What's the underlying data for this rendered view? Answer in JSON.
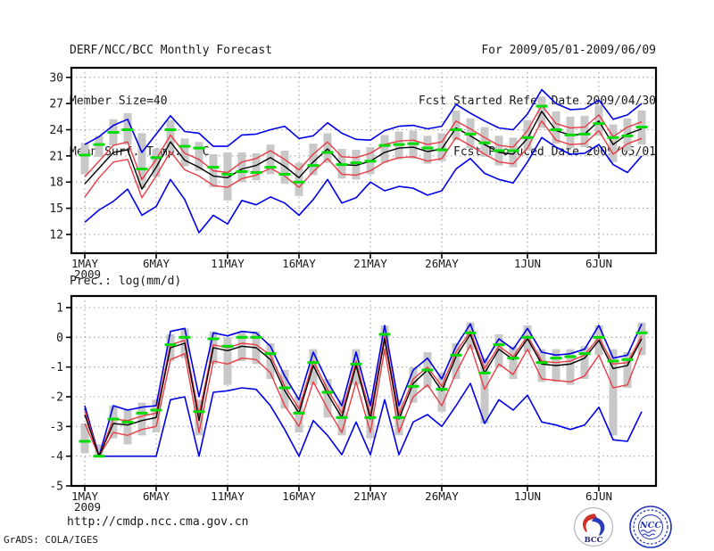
{
  "header": {
    "left": [
      "DERF/NCC/BCC Monthly Forecast",
      "Member Size=40",
      "Mean Surf. Temp.: °C"
    ],
    "right": [
      "For 2009/05/01-2009/06/09",
      "Fcst Started Refer Date 2009/04/30",
      "Fcst Produced Date 2009/05/01"
    ]
  },
  "prec_label": "Prec.: log(mm/d)",
  "footer": {
    "url": "http://cmdp.ncc.cma.gov.cn",
    "grads_credit": "GrADS: COLA/IGES",
    "logos": [
      {
        "label": "BCC"
      },
      {
        "label": "NCC"
      }
    ]
  },
  "colors": {
    "blue": "#0000e8",
    "red": "#e83c46",
    "black": "#000000",
    "green": "#00dc00",
    "gray": "#c8c8c8",
    "grid": "#9c9c9c",
    "frame": "#000000"
  },
  "chart_data": [
    {
      "name": "surface-temperature",
      "type": "line",
      "title": "Mean Surf. Temp.: °C",
      "start_date_label": "1MAY 2009",
      "x_days": 40,
      "ylim": [
        9.85,
        31.1
      ],
      "yticks": [
        30,
        27,
        24,
        21,
        18,
        15,
        12
      ],
      "grid": true,
      "xticks": [
        {
          "i": 0,
          "label": "1MAY",
          "sub": "2009"
        },
        {
          "i": 5,
          "label": "6MAY"
        },
        {
          "i": 10,
          "label": "11MAY"
        },
        {
          "i": 15,
          "label": "16MAY"
        },
        {
          "i": 20,
          "label": "21MAY"
        },
        {
          "i": 25,
          "label": "26MAY"
        },
        {
          "i": 31,
          "label": "1JUN"
        },
        {
          "i": 36,
          "label": "6JUN"
        }
      ],
      "series": [
        {
          "name": "ensemble-spread-bar",
          "style": "bar",
          "color": "gray",
          "lo": [
            18.9,
            20.9,
            22.2,
            22.3,
            17.3,
            18.6,
            21.6,
            19.8,
            19.3,
            17.4,
            15.9,
            18.0,
            18.2,
            18.9,
            17.8,
            16.4,
            18.8,
            20.2,
            18.4,
            18.3,
            18.9,
            20.2,
            20.6,
            20.7,
            20.1,
            20.4,
            22.8,
            21.9,
            20.9,
            19.9,
            19.7,
            21.6,
            24.2,
            22.4,
            21.9,
            22.0,
            23.3,
            20.3,
            21.6,
            22.3
          ],
          "hi": [
            22.5,
            23.3,
            25.2,
            25.9,
            23.6,
            21.8,
            25.1,
            23.0,
            22.6,
            21.2,
            21.4,
            21.4,
            21.3,
            22.3,
            21.6,
            20.2,
            22.4,
            23.6,
            21.8,
            21.7,
            22.0,
            23.4,
            23.8,
            23.9,
            23.3,
            23.6,
            26.2,
            25.3,
            24.3,
            23.3,
            23.1,
            25.1,
            27.8,
            26.1,
            25.5,
            25.6,
            26.8,
            24.6,
            25.3,
            26.2
          ]
        },
        {
          "name": "ensemble-max",
          "style": "line",
          "color": "blue",
          "width": 1.6,
          "values": [
            22.3,
            23.2,
            24.5,
            25.2,
            21.4,
            23.5,
            25.6,
            23.8,
            23.6,
            22.1,
            22.1,
            23.4,
            23.5,
            24.0,
            24.4,
            23.0,
            23.3,
            24.8,
            23.6,
            22.9,
            22.8,
            23.9,
            24.4,
            24.5,
            24.1,
            24.4,
            26.9,
            25.9,
            25.0,
            24.2,
            24.0,
            25.8,
            28.6,
            27.0,
            26.3,
            26.4,
            27.4,
            25.2,
            25.7,
            27.0
          ]
        },
        {
          "name": "ensemble-min",
          "style": "line",
          "color": "blue",
          "width": 1.6,
          "values": [
            13.4,
            14.8,
            15.8,
            17.2,
            14.2,
            15.2,
            18.3,
            16.0,
            12.2,
            14.2,
            13.2,
            15.9,
            15.4,
            16.3,
            15.6,
            14.2,
            16.0,
            18.3,
            15.6,
            16.2,
            18.0,
            17.0,
            17.5,
            17.3,
            16.5,
            17.0,
            19.5,
            20.7,
            19.0,
            18.3,
            17.9,
            20.3,
            23.1,
            22.0,
            21.2,
            21.3,
            22.3,
            20.0,
            19.1,
            21.0
          ]
        },
        {
          "name": "upper-envelope",
          "style": "line",
          "color": "red",
          "width": 1.4,
          "values": [
            18.6,
            20.4,
            22.2,
            22.6,
            18.3,
            20.6,
            23.4,
            21.3,
            20.6,
            19.3,
            19.1,
            20.3,
            20.7,
            21.6,
            20.6,
            19.4,
            21.2,
            22.6,
            20.9,
            20.8,
            21.3,
            22.3,
            22.7,
            22.8,
            22.3,
            22.6,
            25.0,
            24.1,
            23.1,
            22.2,
            22.0,
            23.9,
            26.8,
            24.7,
            24.2,
            24.3,
            25.7,
            23.2,
            24.3,
            24.9
          ]
        },
        {
          "name": "lower-envelope",
          "style": "line",
          "color": "red",
          "width": 1.4,
          "values": [
            16.3,
            18.5,
            20.3,
            20.6,
            16.2,
            18.7,
            21.5,
            19.4,
            18.7,
            17.6,
            17.4,
            18.4,
            18.8,
            19.6,
            18.7,
            17.4,
            19.2,
            20.7,
            18.9,
            18.8,
            19.3,
            20.3,
            20.8,
            20.9,
            20.4,
            20.7,
            23.1,
            22.2,
            21.2,
            20.3,
            20.1,
            21.9,
            25.0,
            22.8,
            22.3,
            22.4,
            23.9,
            21.2,
            22.4,
            23.0
          ]
        },
        {
          "name": "ensemble-mean",
          "style": "line",
          "color": "black",
          "width": 1.4,
          "values": [
            17.8,
            19.6,
            21.4,
            21.7,
            17.2,
            19.7,
            22.6,
            20.5,
            19.7,
            18.7,
            18.5,
            19.5,
            19.9,
            20.8,
            19.8,
            18.5,
            20.3,
            21.8,
            20.0,
            19.9,
            20.4,
            21.4,
            21.9,
            22.0,
            21.5,
            21.8,
            24.2,
            23.3,
            22.3,
            21.4,
            21.2,
            23.0,
            26.1,
            23.9,
            23.4,
            23.5,
            25.0,
            22.3,
            23.5,
            24.1
          ]
        },
        {
          "name": "reference-dashes",
          "style": "dash",
          "color": "green",
          "values": [
            21.1,
            22.3,
            23.7,
            24.0,
            19.5,
            20.8,
            24.0,
            22.1,
            21.9,
            19.7,
            18.9,
            19.2,
            19.1,
            19.7,
            18.9,
            18.0,
            19.9,
            21.4,
            20.0,
            20.2,
            20.4,
            22.2,
            22.3,
            22.4,
            21.9,
            21.7,
            24.0,
            23.5,
            22.5,
            21.6,
            21.6,
            23.1,
            26.7,
            24.0,
            23.4,
            23.5,
            24.7,
            23.1,
            23.3,
            24.3
          ]
        }
      ]
    },
    {
      "name": "precipitation",
      "type": "line",
      "title": "Prec.: log(mm/d)",
      "start_date_label": "1MAY 2009",
      "x_days": 40,
      "ylim": [
        -5.0,
        1.39
      ],
      "yticks": [
        1,
        0,
        -1,
        -2,
        -3,
        -4,
        -5
      ],
      "grid": true,
      "xticks": [
        {
          "i": 0,
          "label": "1MAY",
          "sub": "2009"
        },
        {
          "i": 5,
          "label": "6MAY"
        },
        {
          "i": 10,
          "label": "11MAY"
        },
        {
          "i": 15,
          "label": "16MAY"
        },
        {
          "i": 20,
          "label": "21MAY"
        },
        {
          "i": 25,
          "label": "26MAY"
        },
        {
          "i": 31,
          "label": "1JUN"
        },
        {
          "i": 36,
          "label": "6JUN"
        }
      ],
      "series": [
        {
          "name": "ensemble-spread-bar",
          "style": "bar",
          "color": "gray",
          "lo": [
            -3.9,
            -4.0,
            -3.4,
            -3.6,
            -3.3,
            -3.2,
            -0.8,
            -0.7,
            -3.3,
            -0.9,
            -1.6,
            -0.8,
            -0.9,
            -1.4,
            -2.4,
            -3.2,
            -1.6,
            -2.7,
            -3.3,
            -1.6,
            -3.4,
            -0.6,
            -3.3,
            -2.2,
            -1.7,
            -2.5,
            -1.4,
            -0.4,
            -2.9,
            -1.0,
            -1.4,
            -0.5,
            -1.5,
            -1.5,
            -1.6,
            -1.4,
            -0.6,
            -3.3,
            -1.7,
            -0.6
          ],
          "hi": [
            -2.9,
            -3.6,
            -2.3,
            -2.4,
            -2.2,
            -2.1,
            0.1,
            0.3,
            -2.1,
            0.2,
            0.0,
            0.2,
            0.2,
            -0.2,
            -1.1,
            -2.0,
            -0.4,
            -1.4,
            -2.1,
            -0.4,
            -2.1,
            0.4,
            -2.1,
            -1.0,
            -0.5,
            -1.2,
            -0.2,
            0.5,
            -0.7,
            0.1,
            -0.3,
            0.4,
            -0.4,
            -0.4,
            -0.4,
            -0.3,
            0.4,
            -0.4,
            -0.5,
            0.5
          ]
        },
        {
          "name": "ensemble-max",
          "style": "line",
          "color": "blue",
          "width": 1.6,
          "values": [
            -2.3,
            -4.0,
            -2.3,
            -2.45,
            -2.35,
            -2.3,
            0.2,
            0.3,
            -2.0,
            0.15,
            0.05,
            0.2,
            0.15,
            -0.3,
            -1.3,
            -2.1,
            -0.5,
            -1.5,
            -2.3,
            -0.5,
            -2.3,
            0.4,
            -2.3,
            -1.1,
            -0.7,
            -1.4,
            -0.3,
            0.45,
            -0.85,
            -0.05,
            -0.4,
            0.3,
            -0.5,
            -0.6,
            -0.55,
            -0.4,
            0.4,
            -0.7,
            -0.6,
            0.45
          ]
        },
        {
          "name": "ensemble-min",
          "style": "line",
          "color": "blue",
          "width": 1.6,
          "values": [
            -2.4,
            -4.0,
            -4.0,
            -4.0,
            -4.0,
            -4.0,
            -2.1,
            -2.0,
            -4.0,
            -1.85,
            -1.8,
            -1.7,
            -1.75,
            -2.3,
            -3.1,
            -4.0,
            -2.8,
            -3.3,
            -3.95,
            -2.85,
            -3.95,
            -2.1,
            -3.95,
            -2.85,
            -2.6,
            -3.0,
            -2.3,
            -1.55,
            -2.9,
            -2.1,
            -2.45,
            -1.95,
            -2.85,
            -2.95,
            -3.1,
            -2.95,
            -2.35,
            -3.45,
            -3.5,
            -2.5
          ]
        },
        {
          "name": "upper-envelope",
          "style": "line",
          "color": "red",
          "width": 1.4,
          "values": [
            -2.45,
            -4.0,
            -2.75,
            -2.8,
            -2.65,
            -2.55,
            -0.25,
            -0.1,
            -2.6,
            -0.25,
            -0.35,
            -0.2,
            -0.25,
            -0.6,
            -1.65,
            -2.4,
            -0.8,
            -1.75,
            -2.55,
            -0.8,
            -2.6,
            0.05,
            -2.6,
            -1.4,
            -1.0,
            -1.65,
            -0.5,
            0.2,
            -1.05,
            -0.3,
            -0.65,
            0.05,
            -0.8,
            -0.85,
            -0.8,
            -0.6,
            0.0,
            -0.9,
            -0.85,
            0.05
          ]
        },
        {
          "name": "lower-envelope",
          "style": "line",
          "color": "red",
          "width": 1.4,
          "values": [
            -2.9,
            -4.0,
            -3.2,
            -3.3,
            -3.1,
            -3.0,
            -0.75,
            -0.55,
            -3.2,
            -0.8,
            -0.9,
            -0.7,
            -0.75,
            -1.2,
            -2.3,
            -3.0,
            -1.5,
            -2.4,
            -3.2,
            -1.5,
            -3.2,
            -0.4,
            -3.2,
            -2.0,
            -1.6,
            -2.3,
            -1.2,
            -0.25,
            -1.75,
            -0.9,
            -1.25,
            -0.4,
            -1.4,
            -1.45,
            -1.5,
            -1.3,
            -0.6,
            -1.7,
            -1.6,
            -0.35
          ]
        },
        {
          "name": "ensemble-mean",
          "style": "line",
          "color": "black",
          "width": 1.4,
          "values": [
            -2.6,
            -4.0,
            -2.9,
            -2.95,
            -2.8,
            -2.7,
            -0.35,
            -0.2,
            -2.8,
            -0.35,
            -0.45,
            -0.3,
            -0.35,
            -0.75,
            -1.8,
            -2.55,
            -0.95,
            -1.9,
            -2.7,
            -0.95,
            -2.75,
            -0.05,
            -2.75,
            -1.55,
            -1.1,
            -1.8,
            -0.65,
            0.1,
            -1.2,
            -0.4,
            -0.75,
            -0.05,
            -0.9,
            -0.95,
            -0.9,
            -0.7,
            -0.1,
            -1.05,
            -0.95,
            -0.05
          ]
        },
        {
          "name": "reference-dashes",
          "style": "dash",
          "color": "green",
          "values": [
            -3.5,
            -4.0,
            -2.75,
            -2.85,
            -2.55,
            -2.45,
            -0.25,
            0.0,
            -2.5,
            -0.05,
            -0.3,
            0.0,
            0.0,
            -0.55,
            -1.7,
            -2.55,
            -0.85,
            -1.85,
            -2.7,
            -0.9,
            -2.7,
            0.1,
            -2.7,
            -1.65,
            -1.1,
            -1.75,
            -0.6,
            0.15,
            -1.2,
            -0.25,
            -0.7,
            0.0,
            -0.85,
            -0.7,
            -0.65,
            -0.55,
            0.0,
            -0.8,
            -0.75,
            0.15
          ]
        }
      ]
    }
  ]
}
